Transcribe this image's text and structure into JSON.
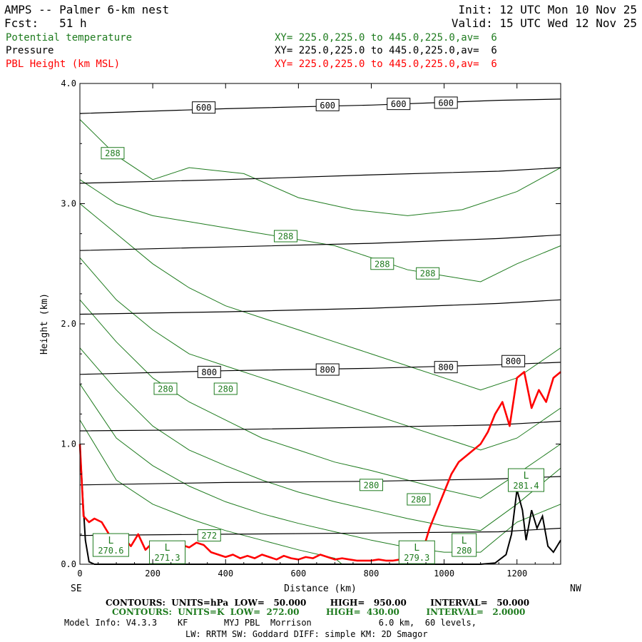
{
  "header": {
    "title": "AMPS -- Palmer 6-km nest",
    "fcst": "Fcst:   51 h",
    "init": "Init: 12 UTC Mon 10 Nov 25",
    "valid": "Valid: 15 UTC Wed 12 Nov 25",
    "fields": [
      {
        "name": "Potential temperature",
        "xy": "XY= 225.0,225.0 to 445.0,225.0,av=  6",
        "color": "#1e7b1e"
      },
      {
        "name": "Pressure",
        "xy": "XY= 225.0,225.0 to 445.0,225.0,av=  6",
        "color": "#000000"
      },
      {
        "name": "PBL Height (km MSL)",
        "xy": "XY= 225.0,225.0 to 445.0,225.0,av=  6",
        "color": "#ff0000"
      }
    ]
  },
  "footer": {
    "line1": "CONTOURS:  UNITS=hPa  LOW=   50.000        HIGH=   950.00        INTERVAL=   50.000",
    "line2": "CONTOURS:  UNITS=K  LOW=  272.00         HIGH=  430.00         INTERVAL=   2.0000",
    "line3": "Model Info: V4.3.3    KF       MYJ PBL  Morrison             6.0 km,  60 levels,",
    "line4": "LW: RRTM SW: Goddard DIFF: simple KM: 2D Smagor"
  },
  "chart_data": {
    "type": "line",
    "title": "AMPS -- Palmer 6-km nest",
    "xlabel": "Distance (km)",
    "ylabel": "Height (km)",
    "xlim": [
      0,
      1320
    ],
    "ylim": [
      0,
      4
    ],
    "x_ticks": [
      0,
      200,
      400,
      600,
      800,
      1000,
      1200
    ],
    "x_tick_labels": [
      "0",
      "200",
      "400",
      "600",
      "800",
      "1000",
      "1200"
    ],
    "y_ticks": [
      0,
      1,
      2,
      3,
      4
    ],
    "y_tick_labels": [
      "0.0",
      "1.0",
      "2.0",
      "3.0",
      "4.0"
    ],
    "x_end_labels": {
      "left": "SE",
      "right": "NW"
    },
    "colors": {
      "theta": "#1e7b1e",
      "pressure": "#000000",
      "pbl": "#ff0000",
      "terrain": "#000000"
    },
    "pressure_contours": [
      {
        "level": 600,
        "points": [
          [
            0,
            3.75
          ],
          [
            400,
            3.79
          ],
          [
            800,
            3.82
          ],
          [
            1150,
            3.86
          ],
          [
            1320,
            3.87
          ]
        ]
      },
      {
        "level": 650,
        "points": [
          [
            0,
            3.17
          ],
          [
            400,
            3.2
          ],
          [
            800,
            3.24
          ],
          [
            1150,
            3.27
          ],
          [
            1320,
            3.3
          ]
        ]
      },
      {
        "level": 700,
        "points": [
          [
            0,
            2.61
          ],
          [
            400,
            2.64
          ],
          [
            800,
            2.67
          ],
          [
            1150,
            2.71
          ],
          [
            1320,
            2.74
          ]
        ]
      },
      {
        "level": 750,
        "points": [
          [
            0,
            2.08
          ],
          [
            400,
            2.1
          ],
          [
            800,
            2.13
          ],
          [
            1150,
            2.17
          ],
          [
            1320,
            2.2
          ]
        ]
      },
      {
        "level": 800,
        "points": [
          [
            0,
            1.58
          ],
          [
            400,
            1.61
          ],
          [
            800,
            1.63
          ],
          [
            1150,
            1.66
          ],
          [
            1320,
            1.68
          ]
        ]
      },
      {
        "level": 850,
        "points": [
          [
            0,
            1.11
          ],
          [
            400,
            1.12
          ],
          [
            800,
            1.14
          ],
          [
            1150,
            1.16
          ],
          [
            1320,
            1.19
          ]
        ]
      },
      {
        "level": 900,
        "points": [
          [
            0,
            0.66
          ],
          [
            400,
            0.68
          ],
          [
            800,
            0.69
          ],
          [
            1150,
            0.71
          ],
          [
            1320,
            0.73
          ]
        ]
      },
      {
        "level": 950,
        "points": [
          [
            0,
            0.24
          ],
          [
            400,
            0.25
          ],
          [
            800,
            0.26
          ],
          [
            1150,
            0.27
          ],
          [
            1320,
            0.3
          ]
        ]
      }
    ],
    "pressure_labels": [
      {
        "text": "600",
        "x": 340,
        "y": 3.8
      },
      {
        "text": "600",
        "x": 680,
        "y": 3.82
      },
      {
        "text": "600",
        "x": 875,
        "y": 3.83
      },
      {
        "text": "600",
        "x": 1005,
        "y": 3.84
      },
      {
        "text": "800",
        "x": 355,
        "y": 1.6
      },
      {
        "text": "800",
        "x": 680,
        "y": 1.62
      },
      {
        "text": "800",
        "x": 1005,
        "y": 1.64
      },
      {
        "text": "800",
        "x": 1190,
        "y": 1.69
      }
    ],
    "theta_contours": [
      [
        [
          0,
          3.7
        ],
        [
          100,
          3.4
        ],
        [
          200,
          3.2
        ],
        [
          300,
          3.3
        ],
        [
          450,
          3.25
        ],
        [
          600,
          3.05
        ],
        [
          750,
          2.95
        ],
        [
          900,
          2.9
        ],
        [
          1050,
          2.95
        ],
        [
          1200,
          3.1
        ],
        [
          1320,
          3.3
        ]
      ],
      [
        [
          0,
          3.2
        ],
        [
          100,
          3.0
        ],
        [
          200,
          2.9
        ],
        [
          300,
          2.85
        ],
        [
          400,
          2.8
        ],
        [
          500,
          2.75
        ],
        [
          600,
          2.7
        ],
        [
          700,
          2.65
        ],
        [
          800,
          2.55
        ],
        [
          900,
          2.45
        ],
        [
          1000,
          2.4
        ],
        [
          1100,
          2.35
        ],
        [
          1200,
          2.5
        ],
        [
          1320,
          2.65
        ]
      ],
      [
        [
          0,
          3.0
        ],
        [
          100,
          2.75
        ],
        [
          200,
          2.5
        ],
        [
          300,
          2.3
        ],
        [
          400,
          2.15
        ],
        [
          500,
          2.05
        ],
        [
          600,
          1.95
        ],
        [
          700,
          1.85
        ],
        [
          800,
          1.75
        ],
        [
          900,
          1.65
        ],
        [
          1000,
          1.55
        ],
        [
          1100,
          1.45
        ],
        [
          1200,
          1.55
        ],
        [
          1320,
          1.8
        ]
      ],
      [
        [
          0,
          2.55
        ],
        [
          100,
          2.2
        ],
        [
          200,
          1.95
        ],
        [
          300,
          1.75
        ],
        [
          400,
          1.65
        ],
        [
          500,
          1.55
        ],
        [
          600,
          1.45
        ],
        [
          700,
          1.35
        ],
        [
          800,
          1.25
        ],
        [
          900,
          1.15
        ],
        [
          1000,
          1.05
        ],
        [
          1100,
          0.95
        ],
        [
          1200,
          1.05
        ],
        [
          1320,
          1.3
        ]
      ],
      [
        [
          0,
          2.2
        ],
        [
          100,
          1.85
        ],
        [
          200,
          1.55
        ],
        [
          300,
          1.35
        ],
        [
          400,
          1.2
        ],
        [
          500,
          1.05
        ],
        [
          600,
          0.95
        ],
        [
          700,
          0.85
        ],
        [
          800,
          0.78
        ],
        [
          900,
          0.7
        ],
        [
          1000,
          0.62
        ],
        [
          1100,
          0.55
        ],
        [
          1200,
          0.75
        ],
        [
          1320,
          1.0
        ]
      ],
      [
        [
          0,
          1.8
        ],
        [
          100,
          1.45
        ],
        [
          200,
          1.15
        ],
        [
          300,
          0.95
        ],
        [
          400,
          0.82
        ],
        [
          500,
          0.7
        ],
        [
          600,
          0.6
        ],
        [
          700,
          0.52
        ],
        [
          800,
          0.45
        ],
        [
          900,
          0.38
        ],
        [
          1000,
          0.32
        ],
        [
          1100,
          0.28
        ],
        [
          1200,
          0.5
        ],
        [
          1320,
          0.8
        ]
      ],
      [
        [
          0,
          1.5
        ],
        [
          100,
          1.05
        ],
        [
          200,
          0.82
        ],
        [
          300,
          0.65
        ],
        [
          400,
          0.52
        ],
        [
          500,
          0.42
        ],
        [
          600,
          0.34
        ],
        [
          700,
          0.27
        ],
        [
          800,
          0.2
        ],
        [
          900,
          0.14
        ],
        [
          1000,
          0.1
        ],
        [
          1100,
          0.1
        ],
        [
          1200,
          0.35
        ],
        [
          1320,
          0.5
        ]
      ],
      [
        [
          0,
          1.2
        ],
        [
          100,
          0.7
        ],
        [
          200,
          0.5
        ],
        [
          300,
          0.38
        ],
        [
          400,
          0.28
        ],
        [
          500,
          0.2
        ],
        [
          600,
          0.12
        ],
        [
          700,
          0.05
        ],
        [
          720,
          0.0
        ]
      ]
    ],
    "theta_labels": [
      {
        "text": "288",
        "x": 90,
        "y": 3.42
      },
      {
        "text": "288",
        "x": 565,
        "y": 2.73
      },
      {
        "text": "288",
        "x": 830,
        "y": 2.5
      },
      {
        "text": "288",
        "x": 955,
        "y": 2.42
      },
      {
        "text": "280",
        "x": 235,
        "y": 1.46
      },
      {
        "text": "280",
        "x": 400,
        "y": 1.46
      },
      {
        "text": "280",
        "x": 800,
        "y": 0.66
      },
      {
        "text": "280",
        "x": 930,
        "y": 0.54
      },
      {
        "text": "272",
        "x": 355,
        "y": 0.24
      }
    ],
    "lows": [
      {
        "letter": "L",
        "value": "270.6",
        "x": 85,
        "y": 0.16
      },
      {
        "letter": "L",
        "value": "271.3",
        "x": 240,
        "y": 0.1
      },
      {
        "letter": "L",
        "value": "279.3",
        "x": 925,
        "y": 0.1
      },
      {
        "letter": "L",
        "value": "280",
        "x": 1055,
        "y": 0.16
      },
      {
        "letter": "L",
        "value": "281.4",
        "x": 1225,
        "y": 0.7
      }
    ],
    "pbl_height": [
      [
        0,
        1.0
      ],
      [
        10,
        0.4
      ],
      [
        25,
        0.35
      ],
      [
        40,
        0.38
      ],
      [
        60,
        0.35
      ],
      [
        80,
        0.25
      ],
      [
        100,
        0.18
      ],
      [
        120,
        0.22
      ],
      [
        140,
        0.15
      ],
      [
        160,
        0.25
      ],
      [
        180,
        0.12
      ],
      [
        200,
        0.18
      ],
      [
        220,
        0.1
      ],
      [
        240,
        0.15
      ],
      [
        260,
        0.12
      ],
      [
        280,
        0.16
      ],
      [
        300,
        0.14
      ],
      [
        320,
        0.18
      ],
      [
        340,
        0.16
      ],
      [
        360,
        0.1
      ],
      [
        380,
        0.08
      ],
      [
        400,
        0.06
      ],
      [
        420,
        0.08
      ],
      [
        440,
        0.05
      ],
      [
        460,
        0.07
      ],
      [
        480,
        0.05
      ],
      [
        500,
        0.08
      ],
      [
        520,
        0.06
      ],
      [
        540,
        0.04
      ],
      [
        560,
        0.07
      ],
      [
        580,
        0.05
      ],
      [
        600,
        0.04
      ],
      [
        620,
        0.06
      ],
      [
        640,
        0.05
      ],
      [
        660,
        0.08
      ],
      [
        680,
        0.06
      ],
      [
        700,
        0.04
      ],
      [
        720,
        0.05
      ],
      [
        740,
        0.04
      ],
      [
        760,
        0.03
      ],
      [
        780,
        0.03
      ],
      [
        800,
        0.03
      ],
      [
        820,
        0.04
      ],
      [
        840,
        0.03
      ],
      [
        860,
        0.03
      ],
      [
        880,
        0.04
      ],
      [
        900,
        0.05
      ],
      [
        920,
        0.06
      ],
      [
        940,
        0.1
      ],
      [
        960,
        0.3
      ],
      [
        980,
        0.45
      ],
      [
        1000,
        0.6
      ],
      [
        1020,
        0.75
      ],
      [
        1040,
        0.85
      ],
      [
        1060,
        0.9
      ],
      [
        1080,
        0.95
      ],
      [
        1100,
        1.0
      ],
      [
        1120,
        1.1
      ],
      [
        1140,
        1.25
      ],
      [
        1160,
        1.35
      ],
      [
        1180,
        1.15
      ],
      [
        1200,
        1.55
      ],
      [
        1220,
        1.6
      ],
      [
        1240,
        1.3
      ],
      [
        1260,
        1.45
      ],
      [
        1280,
        1.35
      ],
      [
        1300,
        1.55
      ],
      [
        1320,
        1.6
      ]
    ],
    "terrain": [
      [
        0,
        1.0
      ],
      [
        8,
        0.55
      ],
      [
        15,
        0.2
      ],
      [
        25,
        0.02
      ],
      [
        40,
        0.0
      ],
      [
        1100,
        0.0
      ],
      [
        1140,
        0.01
      ],
      [
        1170,
        0.08
      ],
      [
        1185,
        0.25
      ],
      [
        1200,
        0.62
      ],
      [
        1215,
        0.45
      ],
      [
        1225,
        0.2
      ],
      [
        1240,
        0.45
      ],
      [
        1255,
        0.3
      ],
      [
        1270,
        0.4
      ],
      [
        1285,
        0.15
      ],
      [
        1300,
        0.1
      ],
      [
        1320,
        0.2
      ]
    ]
  }
}
